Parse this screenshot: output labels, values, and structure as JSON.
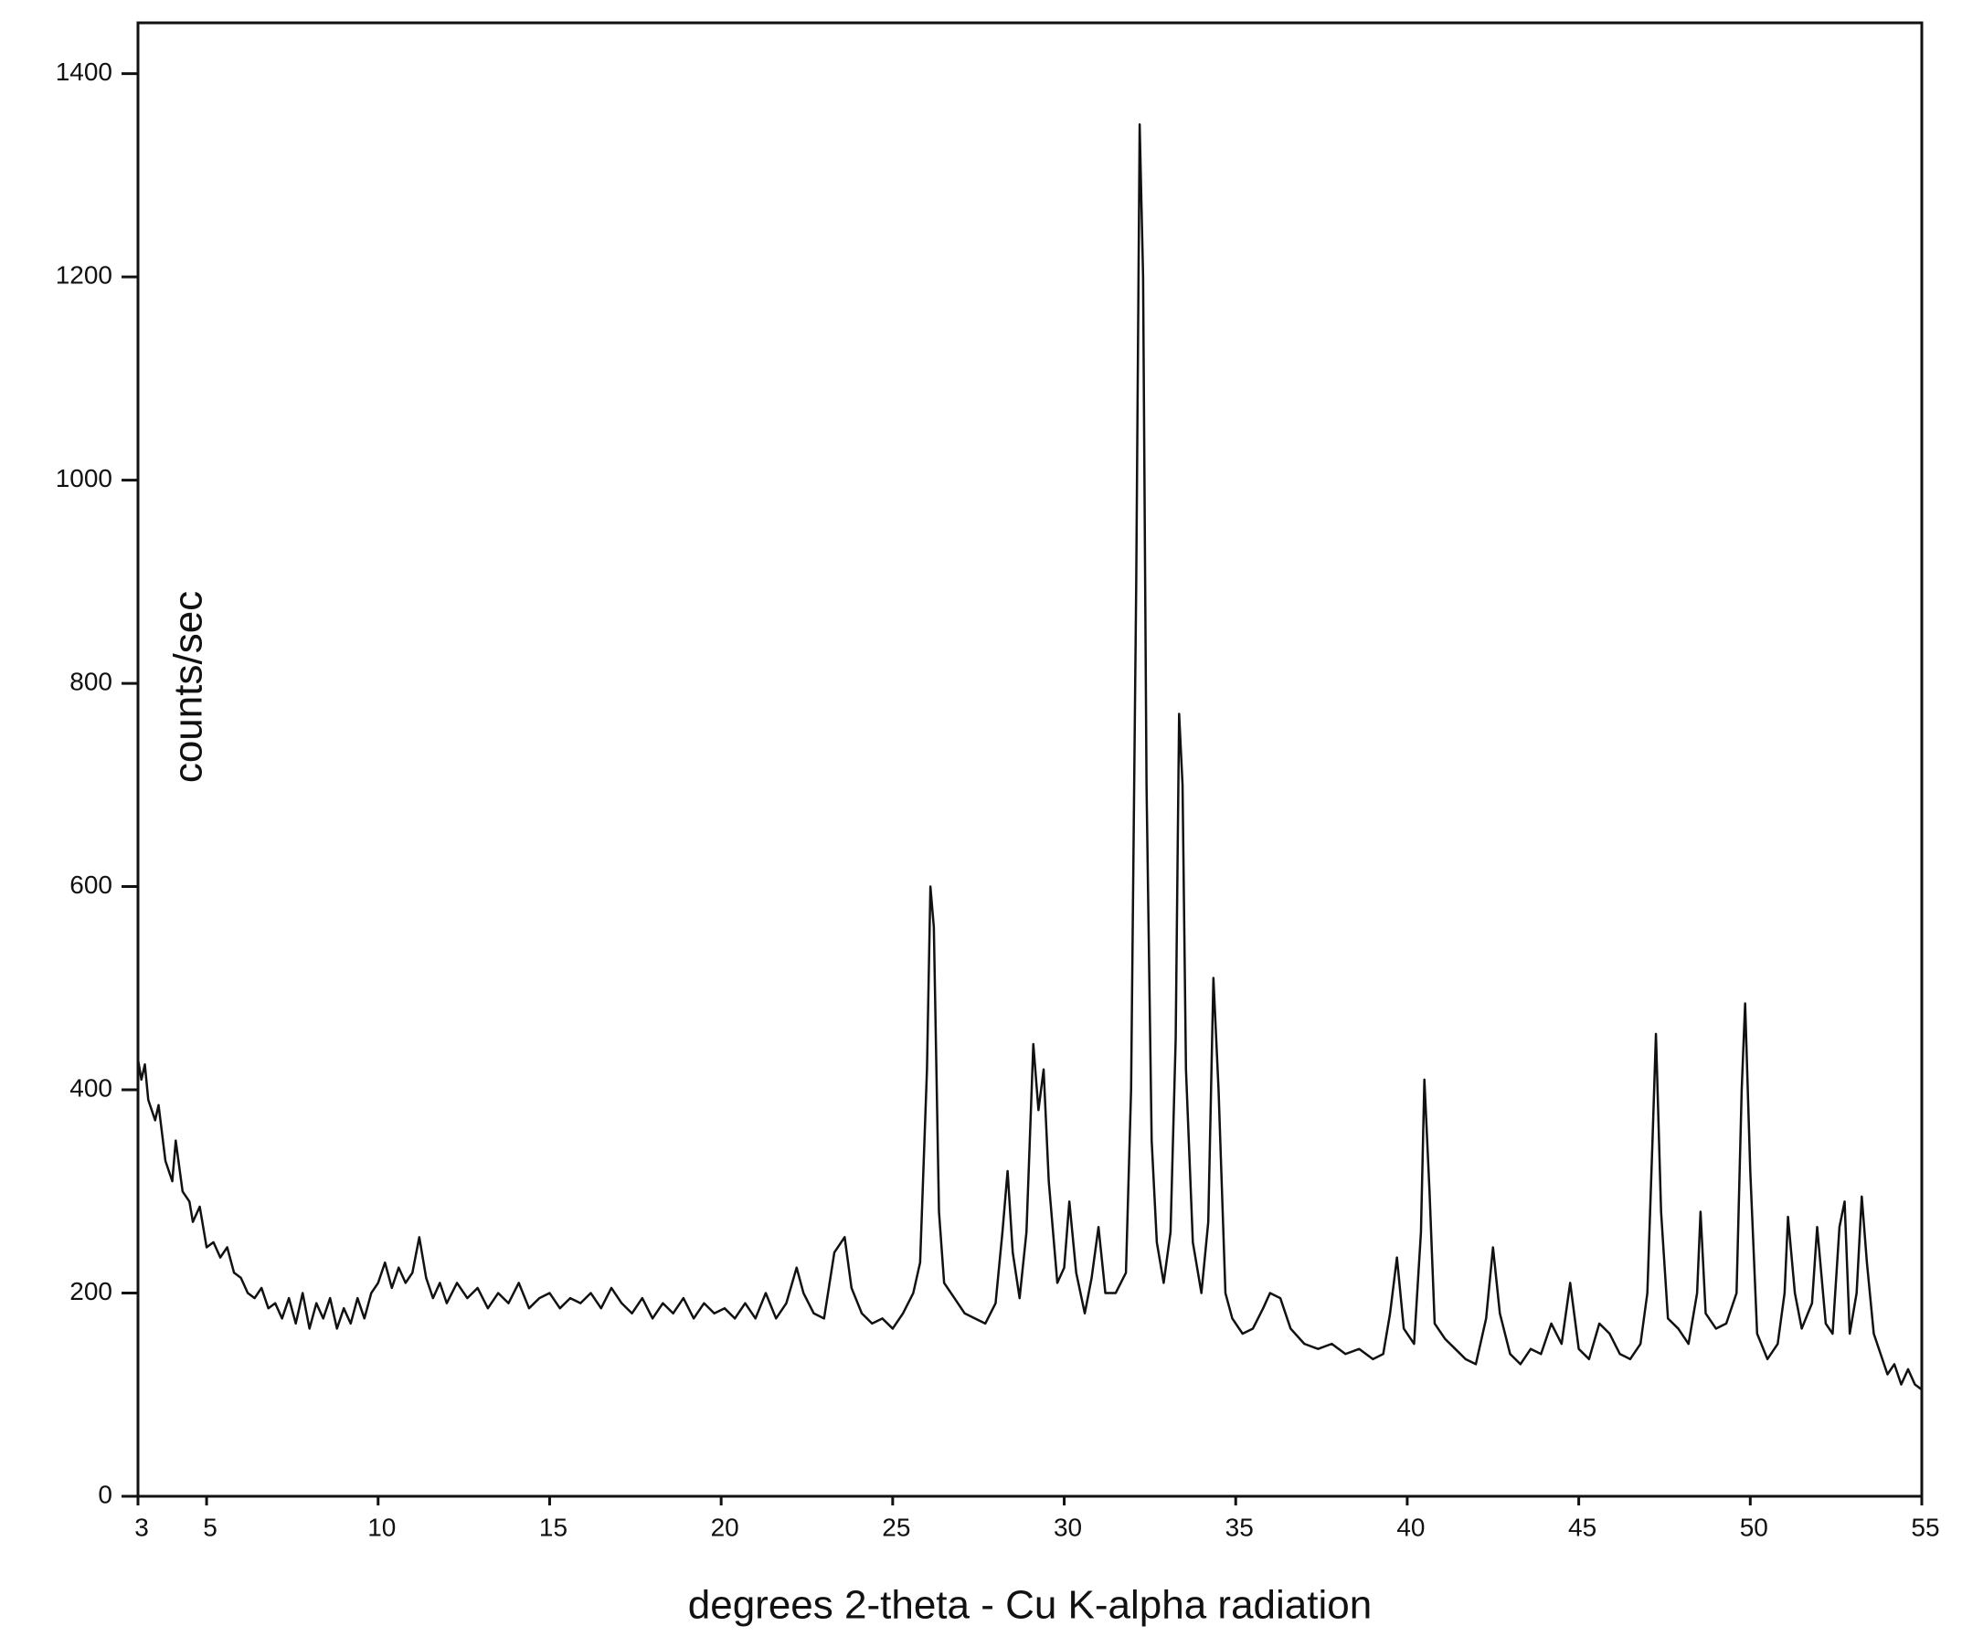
{
  "chart_data": {
    "type": "line",
    "x_label": "degrees 2-theta - Cu K-alpha radiation",
    "y_label": "counts/sec",
    "color": "#111111",
    "xlim": [
      3,
      55
    ],
    "ylim": [
      0,
      1450
    ],
    "xticks": [
      3,
      5,
      10,
      15,
      20,
      25,
      30,
      35,
      40,
      45,
      50,
      55
    ],
    "yticks": [
      0,
      200,
      400,
      600,
      800,
      1000,
      1200,
      1400
    ],
    "grid": false,
    "x": [
      3.0,
      3.1,
      3.2,
      3.3,
      3.5,
      3.6,
      3.8,
      4.0,
      4.1,
      4.3,
      4.5,
      4.6,
      4.8,
      5.0,
      5.2,
      5.4,
      5.6,
      5.8,
      6.0,
      6.2,
      6.4,
      6.6,
      6.8,
      7.0,
      7.2,
      7.4,
      7.6,
      7.8,
      8.0,
      8.2,
      8.4,
      8.6,
      8.8,
      9.0,
      9.2,
      9.4,
      9.6,
      9.8,
      10.0,
      10.2,
      10.4,
      10.6,
      10.8,
      11.0,
      11.2,
      11.4,
      11.6,
      11.8,
      12.0,
      12.3,
      12.6,
      12.9,
      13.2,
      13.5,
      13.8,
      14.1,
      14.4,
      14.7,
      15.0,
      15.3,
      15.6,
      15.9,
      16.2,
      16.5,
      16.8,
      17.1,
      17.4,
      17.7,
      18.0,
      18.3,
      18.6,
      18.9,
      19.2,
      19.5,
      19.8,
      20.1,
      20.4,
      20.7,
      21.0,
      21.3,
      21.6,
      21.9,
      22.2,
      22.4,
      22.7,
      23.0,
      23.3,
      23.6,
      23.8,
      24.1,
      24.4,
      24.7,
      25.0,
      25.3,
      25.6,
      25.8,
      26.0,
      26.1,
      26.2,
      26.35,
      26.5,
      26.8,
      27.1,
      27.4,
      27.7,
      28.0,
      28.2,
      28.35,
      28.5,
      28.7,
      28.9,
      29.1,
      29.25,
      29.4,
      29.55,
      29.8,
      30.0,
      30.15,
      30.35,
      30.6,
      30.8,
      31.0,
      31.2,
      31.5,
      31.8,
      31.95,
      32.1,
      32.2,
      32.3,
      32.4,
      32.55,
      32.7,
      32.9,
      33.1,
      33.25,
      33.35,
      33.45,
      33.55,
      33.75,
      34.0,
      34.2,
      34.35,
      34.5,
      34.7,
      34.9,
      35.2,
      35.5,
      35.8,
      36.0,
      36.3,
      36.6,
      37.0,
      37.4,
      37.8,
      38.2,
      38.6,
      39.0,
      39.3,
      39.5,
      39.7,
      39.9,
      40.2,
      40.4,
      40.5,
      40.65,
      40.8,
      41.1,
      41.4,
      41.7,
      42.0,
      42.3,
      42.5,
      42.7,
      43.0,
      43.3,
      43.6,
      43.9,
      44.2,
      44.5,
      44.75,
      45.0,
      45.3,
      45.6,
      45.9,
      46.2,
      46.5,
      46.8,
      47.0,
      47.15,
      47.25,
      47.4,
      47.6,
      47.9,
      48.2,
      48.45,
      48.55,
      48.7,
      49.0,
      49.3,
      49.6,
      49.75,
      49.85,
      50.0,
      50.2,
      50.5,
      50.8,
      51.0,
      51.1,
      51.3,
      51.5,
      51.8,
      51.95,
      52.2,
      52.4,
      52.6,
      52.75,
      52.9,
      53.1,
      53.25,
      53.4,
      53.6,
      53.8,
      54.0,
      54.2,
      54.4,
      54.6,
      54.8,
      55.0
    ],
    "values": [
      430,
      410,
      425,
      390,
      370,
      385,
      330,
      310,
      350,
      300,
      290,
      270,
      285,
      245,
      250,
      235,
      245,
      220,
      215,
      200,
      195,
      205,
      185,
      190,
      175,
      195,
      170,
      200,
      165,
      190,
      175,
      195,
      165,
      185,
      170,
      195,
      175,
      200,
      210,
      230,
      205,
      225,
      210,
      220,
      255,
      215,
      195,
      210,
      190,
      210,
      195,
      205,
      185,
      200,
      190,
      210,
      185,
      195,
      200,
      185,
      195,
      190,
      200,
      185,
      205,
      190,
      180,
      195,
      175,
      190,
      180,
      195,
      175,
      190,
      180,
      185,
      175,
      190,
      175,
      200,
      175,
      190,
      225,
      200,
      180,
      175,
      240,
      255,
      205,
      180,
      170,
      175,
      165,
      180,
      200,
      230,
      420,
      600,
      560,
      280,
      210,
      195,
      180,
      175,
      170,
      190,
      260,
      320,
      240,
      195,
      260,
      445,
      380,
      420,
      310,
      210,
      225,
      290,
      220,
      180,
      215,
      265,
      200,
      200,
      220,
      400,
      900,
      1350,
      1200,
      700,
      350,
      250,
      210,
      260,
      450,
      770,
      700,
      420,
      250,
      200,
      270,
      510,
      400,
      200,
      175,
      160,
      165,
      185,
      200,
      195,
      165,
      150,
      145,
      150,
      140,
      145,
      135,
      140,
      180,
      235,
      165,
      150,
      260,
      410,
      300,
      170,
      155,
      145,
      135,
      130,
      175,
      245,
      180,
      140,
      130,
      145,
      140,
      170,
      150,
      210,
      145,
      135,
      170,
      160,
      140,
      135,
      150,
      200,
      350,
      455,
      280,
      175,
      165,
      150,
      200,
      280,
      180,
      165,
      170,
      200,
      400,
      485,
      320,
      160,
      135,
      150,
      200,
      275,
      200,
      165,
      190,
      265,
      170,
      160,
      265,
      290,
      160,
      200,
      295,
      230,
      160,
      140,
      120,
      130,
      110,
      125,
      110,
      105
    ]
  }
}
